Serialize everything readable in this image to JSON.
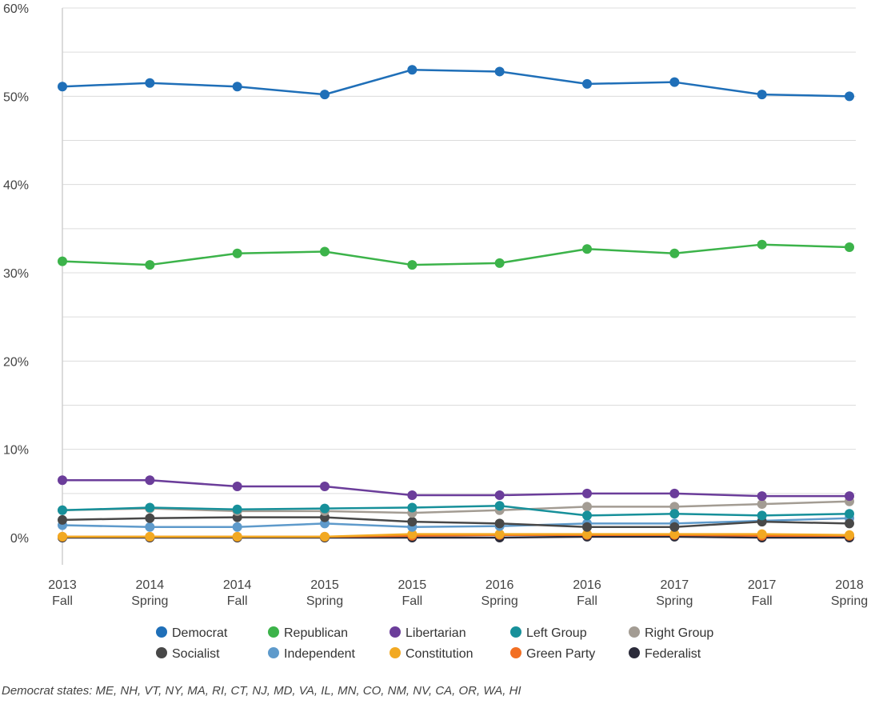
{
  "chart_data": {
    "type": "line",
    "title": "",
    "xlabel": "",
    "ylabel": "",
    "ylim": [
      0,
      60
    ],
    "yticks": [
      "0%",
      "10%",
      "20%",
      "30%",
      "40%",
      "50%",
      "60%"
    ],
    "categories": [
      {
        "year": "2013",
        "season": "Fall"
      },
      {
        "year": "2014",
        "season": "Spring"
      },
      {
        "year": "2014",
        "season": "Fall"
      },
      {
        "year": "2015",
        "season": "Spring"
      },
      {
        "year": "2015",
        "season": "Fall"
      },
      {
        "year": "2016",
        "season": "Spring"
      },
      {
        "year": "2016",
        "season": "Fall"
      },
      {
        "year": "2017",
        "season": "Spring"
      },
      {
        "year": "2017",
        "season": "Fall"
      },
      {
        "year": "2018",
        "season": "Spring"
      }
    ],
    "series": [
      {
        "name": "Democrat",
        "color": "#1f6fb8",
        "values": [
          51.1,
          51.5,
          51.1,
          50.2,
          53.0,
          52.8,
          51.4,
          51.6,
          50.2,
          50.0
        ]
      },
      {
        "name": "Republican",
        "color": "#3cb34a",
        "values": [
          31.3,
          30.9,
          32.2,
          32.4,
          30.9,
          31.1,
          32.7,
          32.2,
          33.2,
          32.9
        ]
      },
      {
        "name": "Libertarian",
        "color": "#6b3d9a",
        "values": [
          6.5,
          6.5,
          5.8,
          5.8,
          4.8,
          4.8,
          5.0,
          5.0,
          4.7,
          4.7
        ]
      },
      {
        "name": "Left Group",
        "color": "#17909a",
        "values": [
          3.1,
          3.4,
          3.2,
          3.3,
          3.4,
          3.6,
          2.5,
          2.7,
          2.5,
          2.7
        ]
      },
      {
        "name": "Right Group",
        "color": "#a39c93",
        "values": [
          3.1,
          3.3,
          3.0,
          3.0,
          2.8,
          3.1,
          3.5,
          3.5,
          3.8,
          4.1
        ]
      },
      {
        "name": "Socialist",
        "color": "#484848",
        "values": [
          2.0,
          2.2,
          2.3,
          2.3,
          1.8,
          1.6,
          1.2,
          1.2,
          1.8,
          1.6
        ]
      },
      {
        "name": "Independent",
        "color": "#5e9acb",
        "values": [
          1.4,
          1.2,
          1.2,
          1.6,
          1.2,
          1.3,
          1.6,
          1.6,
          1.9,
          2.2
        ]
      },
      {
        "name": "Constitution",
        "color": "#f2a922",
        "values": [
          0.1,
          0.1,
          0.1,
          0.1,
          0.4,
          0.4,
          0.4,
          0.4,
          0.4,
          0.3
        ]
      },
      {
        "name": "Green Party",
        "color": "#f26f23",
        "values": [
          0.1,
          0.1,
          0.1,
          0.1,
          0.2,
          0.3,
          0.3,
          0.3,
          0.2,
          0.2
        ]
      },
      {
        "name": "Federalist",
        "color": "#2b2b3a",
        "values": [
          0.0,
          0.0,
          0.0,
          0.0,
          0.0,
          0.0,
          0.1,
          0.1,
          0.0,
          0.0
        ]
      }
    ]
  },
  "footnote": "Democrat states: ME, NH, VT, NY, MA, RI, CT, NJ, MD, VA, IL, MN, CO, NM, NV, CA, OR, WA, HI"
}
